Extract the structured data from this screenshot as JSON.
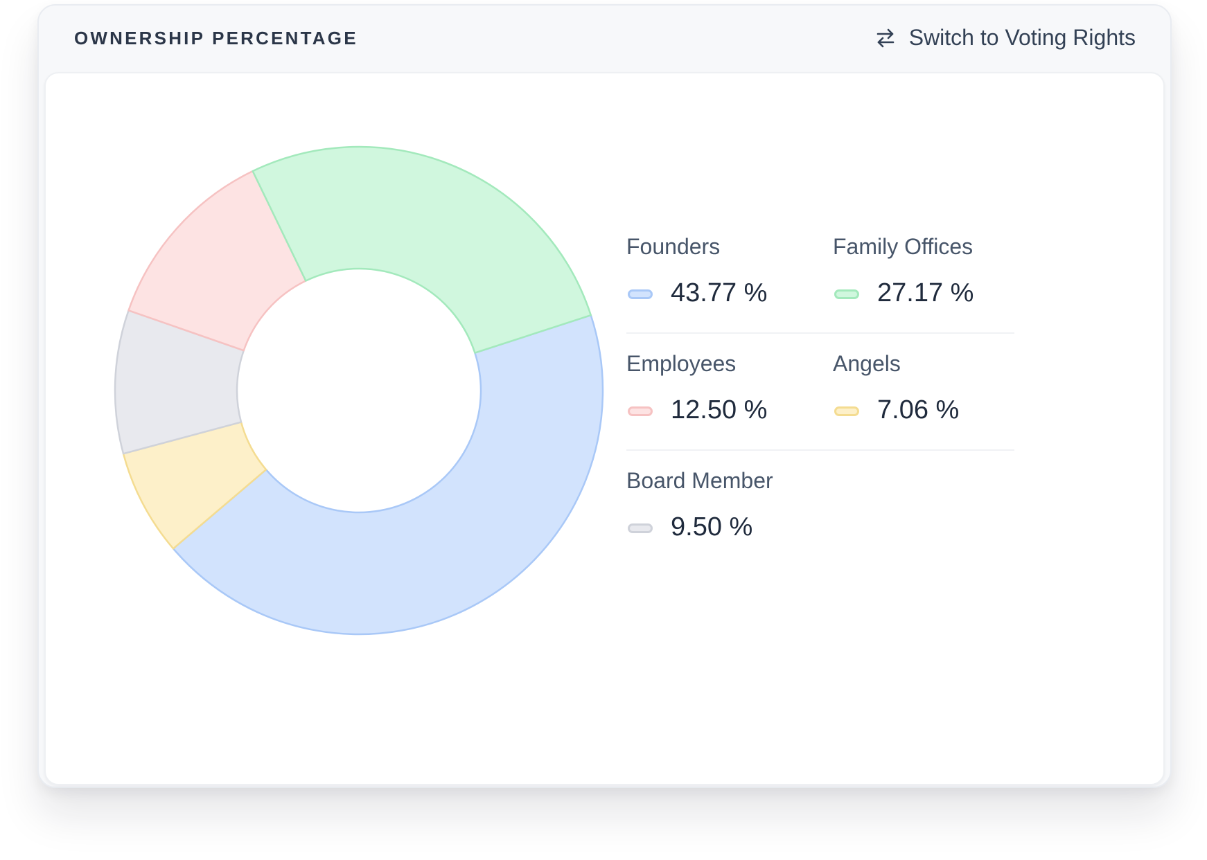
{
  "header": {
    "title": "OWNERSHIP PERCENTAGE",
    "switch_label": "Switch to Voting Rights",
    "switch_icon": "arrows-left-right-icon"
  },
  "chart_data": {
    "type": "pie",
    "variant": "donut",
    "series": [
      {
        "name": "Founders",
        "value": 43.77,
        "label": "43.77 %",
        "fill": "#d2e3fd",
        "stroke": "#a9c8f7"
      },
      {
        "name": "Family Offices",
        "value": 27.17,
        "label": "27.17 %",
        "fill": "#d0f7de",
        "stroke": "#a3e9bc"
      },
      {
        "name": "Employees",
        "value": 12.5,
        "label": "12.50 %",
        "fill": "#fde3e3",
        "stroke": "#f6c2c2"
      },
      {
        "name": "Angels",
        "value": 7.06,
        "label": "7.06 %",
        "fill": "#fdf0c9",
        "stroke": "#f4dc91"
      },
      {
        "name": "Board Member",
        "value": 9.5,
        "label": "9.50 %",
        "fill": "#e8e9ee",
        "stroke": "#cfd2da"
      }
    ],
    "legend_position": "right"
  }
}
